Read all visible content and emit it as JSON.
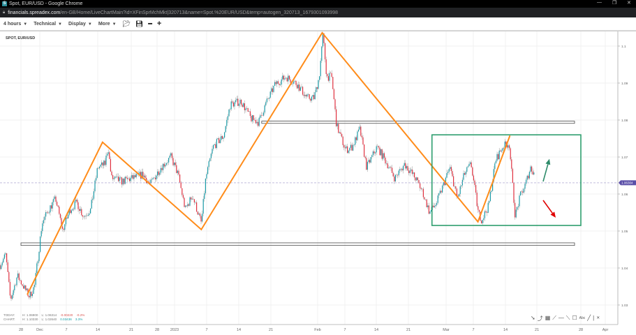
{
  "browser": {
    "title": "Spot, EUR/USD - Google Chrome",
    "favicon": "S",
    "url_host": "financials.spreadex.com",
    "url_path": "/en-GB/Home/LiveChartMain?id=XFinSprMchMkt|320713&name=Spot.%20EUR/USD&temp=autogen_320713_1679301093998",
    "controls": [
      "—",
      "❐",
      "✕"
    ]
  },
  "toolbar": {
    "menus": [
      {
        "label": "4 hours"
      },
      {
        "label": "Technical"
      },
      {
        "label": "Display"
      },
      {
        "label": "More"
      }
    ],
    "icons": [
      "folder-open-icon",
      "save-icon",
      "zoom-out-icon",
      "zoom-in-icon"
    ]
  },
  "symbol": "SPOT, EUR/USD",
  "stats": {
    "today": {
      "label": "TODAY:",
      "high": "H: 1.06900",
      "low": "L: 1.06314",
      "change": "-0.00220",
      "pct": "-0.2%"
    },
    "chart": {
      "label": "CHART:",
      "high": "H: 1.10330",
      "low": "L: 1.02640",
      "change": "0.03436",
      "pct": "3.3%"
    }
  },
  "drawing_tools": [
    "arrow-icon",
    "curve-icon",
    "table-icon",
    "fan-icon",
    "horizontal-line-icon",
    "trend-line-icon",
    "rectangle-icon",
    "text-icon",
    "line-icon",
    "separator",
    "close-icon"
  ],
  "chart_data": {
    "type": "candlestick",
    "symbol": "SPOT, EUR/USD",
    "interval": "4 hours",
    "ylim": [
      1.0265,
      1.1075
    ],
    "y_ticks": [
      1.1,
      1.09,
      1.08,
      1.07,
      1.06,
      1.05,
      1.04,
      1.03
    ],
    "y_tick_labels": [
      "1.1",
      "1.09",
      "1.08",
      "1.07",
      "1.06",
      "1.05",
      "1.04",
      "1.03"
    ],
    "current_price": 1.06304,
    "current_price_label": "1.06304",
    "x_ticks": [
      {
        "date": "2022-11-28",
        "label": "28"
      },
      {
        "date": "2022-12-01",
        "label": "Dec"
      },
      {
        "date": "2022-12-07",
        "label": "7"
      },
      {
        "date": "2022-12-14",
        "label": "14"
      },
      {
        "date": "2022-12-21",
        "label": "21"
      },
      {
        "date": "2022-12-28",
        "label": "28"
      },
      {
        "date": "2023-01-01",
        "label": "2023"
      },
      {
        "date": "2023-01-07",
        "label": "7"
      },
      {
        "date": "2023-01-14",
        "label": "14"
      },
      {
        "date": "2023-01-21",
        "label": "21"
      },
      {
        "date": "2023-02-01",
        "label": "Feb"
      },
      {
        "date": "2023-02-07",
        "label": "7"
      },
      {
        "date": "2023-02-14",
        "label": "14"
      },
      {
        "date": "2023-02-21",
        "label": "21"
      },
      {
        "date": "2023-03-01",
        "label": "Mar"
      },
      {
        "date": "2023-03-07",
        "label": "7"
      },
      {
        "date": "2023-03-14",
        "label": "14"
      },
      {
        "date": "2023-03-21",
        "label": "21"
      },
      {
        "date": "2023-03-28",
        "label": "28"
      },
      {
        "date": "2023-04-01",
        "label": "Apr"
      }
    ],
    "price_path": [
      [
        "2022-11-24T16",
        1.0408
      ],
      [
        "2022-11-25T14",
        1.0436
      ],
      [
        "2022-11-26T08",
        1.0313
      ],
      [
        "2022-11-27T10",
        1.0379
      ],
      [
        "2022-11-29T08",
        1.0323
      ],
      [
        "2022-11-30T04",
        1.0351
      ],
      [
        "2022-12-01T12",
        1.0521
      ],
      [
        "2022-12-03T00",
        1.0558
      ],
      [
        "2022-12-04T14",
        1.0587
      ],
      [
        "2022-12-06T04",
        1.0502
      ],
      [
        "2022-12-07T20",
        1.0558
      ],
      [
        "2022-12-09T08",
        1.0577
      ],
      [
        "2022-12-10T20",
        1.054
      ],
      [
        "2022-12-12T10",
        1.0558
      ],
      [
        "2022-12-14T00",
        1.0672
      ],
      [
        "2022-12-15T12",
        1.0681
      ],
      [
        "2022-12-16T04",
        1.0728
      ],
      [
        "2022-12-16T20",
        1.0643
      ],
      [
        "2022-12-19T02",
        1.0634
      ],
      [
        "2022-12-21T10",
        1.0643
      ],
      [
        "2022-12-24T04",
        1.0653
      ],
      [
        "2022-12-26T02",
        1.0625
      ],
      [
        "2022-12-28T20",
        1.0672
      ],
      [
        "2022-12-31T04",
        1.07
      ],
      [
        "2023-01-01T16",
        1.0653
      ],
      [
        "2023-01-03T00",
        1.0558
      ],
      [
        "2023-01-04T08",
        1.0596
      ],
      [
        "2023-01-06T00",
        1.0521
      ],
      [
        "2023-01-06T20",
        1.0643
      ],
      [
        "2023-01-08T10",
        1.0728
      ],
      [
        "2023-01-10T16",
        1.0757
      ],
      [
        "2023-01-12T04",
        1.0842
      ],
      [
        "2023-01-14T12",
        1.0851
      ],
      [
        "2023-01-16T16",
        1.0804
      ],
      [
        "2023-01-18T08",
        1.0794
      ],
      [
        "2023-01-19T20",
        1.0842
      ],
      [
        "2023-01-22T02",
        1.0898
      ],
      [
        "2023-01-24T14",
        1.0917
      ],
      [
        "2023-01-27T02",
        1.0898
      ],
      [
        "2023-01-29T12",
        1.086
      ],
      [
        "2023-01-31T04",
        1.086
      ],
      [
        "2023-02-01T08",
        1.0917
      ],
      [
        "2023-02-02T04",
        1.103
      ],
      [
        "2023-02-03T00",
        1.0917
      ],
      [
        "2023-02-04T02",
        1.0917
      ],
      [
        "2023-02-05T04",
        1.0785
      ],
      [
        "2023-02-07T04",
        1.0719
      ],
      [
        "2023-02-08T16",
        1.0728
      ],
      [
        "2023-02-10T08",
        1.0775
      ],
      [
        "2023-02-11T20",
        1.0672
      ],
      [
        "2023-02-14T04",
        1.0728
      ],
      [
        "2023-02-16T10",
        1.0681
      ],
      [
        "2023-02-18T00",
        1.0643
      ],
      [
        "2023-02-20T04",
        1.0681
      ],
      [
        "2023-02-22T12",
        1.0643
      ],
      [
        "2023-02-24T00",
        1.0606
      ],
      [
        "2023-02-25T12",
        1.0549
      ],
      [
        "2023-02-27T00",
        1.0577
      ],
      [
        "2023-02-28T10",
        1.0625
      ],
      [
        "2023-03-01T20",
        1.0672
      ],
      [
        "2023-03-03T12",
        1.0587
      ],
      [
        "2023-03-05T00",
        1.0653
      ],
      [
        "2023-03-06T12",
        1.0681
      ],
      [
        "2023-03-08T02",
        1.0549
      ],
      [
        "2023-03-08T20",
        1.053
      ],
      [
        "2023-03-10T08",
        1.0568
      ],
      [
        "2023-03-11T20",
        1.0691
      ],
      [
        "2023-03-13T10",
        1.0728
      ],
      [
        "2023-03-14T20",
        1.0738
      ],
      [
        "2023-03-16T04",
        1.054
      ],
      [
        "2023-03-17T08",
        1.0596
      ],
      [
        "2023-03-18T10",
        1.0625
      ],
      [
        "2023-03-19T14",
        1.0672
      ],
      [
        "2023-03-20T12",
        1.0653
      ]
    ],
    "annotations": {
      "zigzag": [
        [
          "2022-11-29",
          1.0328
        ],
        [
          "2022-12-15",
          1.074
        ],
        [
          "2023-01-06",
          1.0504
        ],
        [
          "2023-02-02",
          1.1036
        ],
        [
          "2023-03-08",
          1.0525
        ],
        [
          "2023-03-15",
          1.0758
        ]
      ],
      "zigzag_color": "#ff8c1a",
      "horizontal_zones": [
        {
          "from": "2023-01-19",
          "to": "2023-03-27",
          "top": 1.0797,
          "bottom": 1.0791
        },
        {
          "from": "2022-11-28",
          "to": "2023-03-27",
          "top": 1.0468,
          "bottom": 1.0461
        }
      ],
      "range_box": {
        "from": "2023-02-26",
        "to": "2023-03-28",
        "top": 1.076,
        "bottom": 1.0515,
        "color": "#2e9e6e"
      },
      "arrows": [
        {
          "direction": "up",
          "color": "#2e8b6a",
          "from": [
            "2023-03-22",
            1.0634
          ],
          "to": [
            "2023-03-23",
            1.0695
          ]
        },
        {
          "direction": "down",
          "color": "#e00000",
          "from": [
            "2023-03-22",
            1.0583
          ],
          "to": [
            "2023-03-24",
            1.0536
          ]
        }
      ]
    },
    "colors": {
      "up": "#1a9aa6",
      "down": "#e0303f",
      "wick": "#9a9a9a",
      "grid": "#ececec",
      "price_tag": "#5b4fa8"
    }
  }
}
